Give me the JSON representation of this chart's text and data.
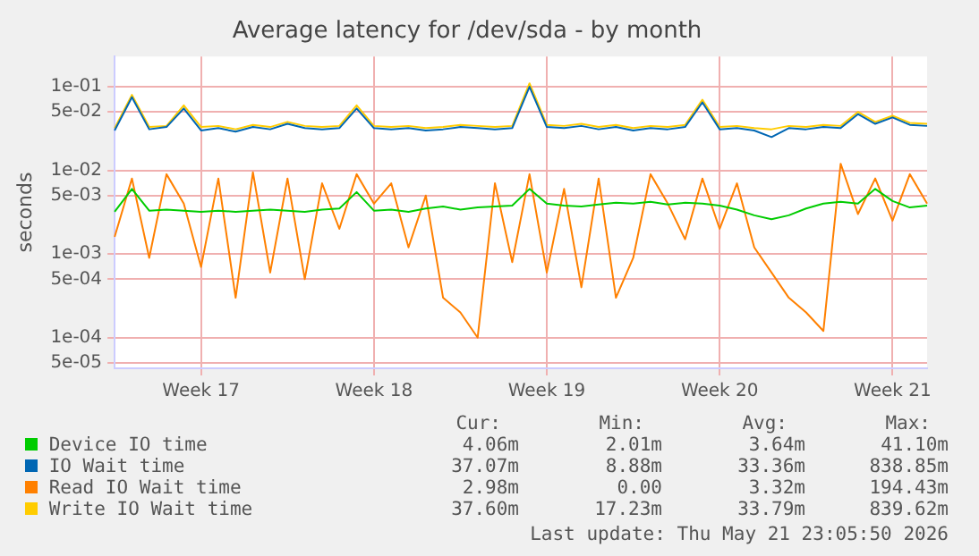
{
  "chart_data": {
    "type": "line",
    "title": "Average latency for /dev/sda - by month",
    "ylabel": "seconds",
    "categories": [
      null,
      null,
      null,
      null,
      null,
      "Week 17",
      null,
      null,
      null,
      null,
      null,
      null,
      null,
      null,
      null,
      "Week 18",
      null,
      null,
      null,
      null,
      null,
      null,
      null,
      null,
      null,
      "Week 19",
      null,
      null,
      null,
      null,
      null,
      null,
      null,
      null,
      null,
      "Week 20",
      null,
      null,
      null,
      null,
      null,
      null,
      null,
      null,
      null,
      "Week 21",
      null,
      null
    ],
    "series": [
      {
        "name": "Device IO time",
        "color": "#00cc00",
        "values": [
          0.0032,
          0.006,
          0.0033,
          0.0034,
          0.0033,
          0.0032,
          0.0033,
          0.0032,
          0.0033,
          0.0034,
          0.0033,
          0.0032,
          0.0034,
          0.0035,
          0.0055,
          0.0033,
          0.0034,
          0.0032,
          0.0035,
          0.0037,
          0.0034,
          0.0036,
          0.0037,
          0.0038,
          0.006,
          0.004,
          0.0038,
          0.0037,
          0.0039,
          0.0041,
          0.004,
          0.0042,
          0.0039,
          0.0041,
          0.004,
          0.0038,
          0.0034,
          0.0029,
          0.0026,
          0.0029,
          0.0035,
          0.004,
          0.0042,
          0.004,
          0.006,
          0.0043,
          0.0036,
          0.0038
        ]
      },
      {
        "name": "IO Wait time",
        "color": "#0066b3",
        "values": [
          0.03,
          0.075,
          0.031,
          0.033,
          0.055,
          0.03,
          0.032,
          0.029,
          0.033,
          0.031,
          0.036,
          0.032,
          0.031,
          0.032,
          0.055,
          0.032,
          0.031,
          0.032,
          0.03,
          0.031,
          0.033,
          0.032,
          0.031,
          0.032,
          0.1,
          0.033,
          0.032,
          0.034,
          0.031,
          0.033,
          0.03,
          0.032,
          0.031,
          0.033,
          0.065,
          0.031,
          0.032,
          0.03,
          0.025,
          0.032,
          0.031,
          0.033,
          0.032,
          0.047,
          0.036,
          0.043,
          0.035,
          0.034
        ]
      },
      {
        "name": "Read IO Wait time",
        "color": "#ff8000",
        "values": [
          0.0016,
          0.008,
          0.0009,
          0.009,
          0.004,
          0.0007,
          0.008,
          0.0003,
          0.0095,
          0.0006,
          0.008,
          0.0005,
          0.007,
          0.002,
          0.009,
          0.004,
          0.007,
          0.0012,
          0.005,
          0.0003,
          0.0002,
          0.0001,
          0.007,
          0.0008,
          0.009,
          0.0006,
          0.006,
          0.0004,
          0.008,
          0.0003,
          0.0009,
          0.009,
          0.004,
          0.0015,
          0.008,
          0.002,
          0.007,
          0.0012,
          0.0006,
          0.0003,
          0.0002,
          0.00012,
          0.012,
          0.003,
          0.008,
          0.0025,
          0.009,
          0.004
        ]
      },
      {
        "name": "Write IO Wait time",
        "color": "#ffcc00",
        "values": [
          0.032,
          0.08,
          0.033,
          0.034,
          0.06,
          0.033,
          0.034,
          0.031,
          0.035,
          0.033,
          0.038,
          0.034,
          0.033,
          0.034,
          0.06,
          0.034,
          0.033,
          0.034,
          0.032,
          0.033,
          0.035,
          0.034,
          0.033,
          0.034,
          0.11,
          0.035,
          0.034,
          0.036,
          0.033,
          0.035,
          0.032,
          0.034,
          0.033,
          0.035,
          0.07,
          0.033,
          0.034,
          0.032,
          0.031,
          0.034,
          0.033,
          0.035,
          0.034,
          0.05,
          0.038,
          0.045,
          0.037,
          0.036
        ]
      }
    ],
    "ylim": [
      4.3e-05,
      0.23
    ],
    "yticks": [
      {
        "value": 0.1,
        "label": "1e-01"
      },
      {
        "value": 0.05,
        "label": "5e-02"
      },
      {
        "value": 0.01,
        "label": "1e-02"
      },
      {
        "value": 0.005,
        "label": "5e-03"
      },
      {
        "value": 0.001,
        "label": "1e-03"
      },
      {
        "value": 0.0005,
        "label": "5e-04"
      },
      {
        "value": 0.0001,
        "label": "1e-04"
      },
      {
        "value": 5e-05,
        "label": "5e-05"
      }
    ],
    "log": "y",
    "grid": true,
    "legend": "bottom left",
    "marker": "none",
    "line_style": "solid",
    "annotations": [
      "Cur:",
      "Min:",
      "Avg:",
      "Max:",
      "4.06m",
      "2.01m",
      "3.64m",
      "41.10m",
      "37.07m",
      "8.88m",
      "33.36m",
      "838.85m",
      "2.98m",
      "0.00",
      "3.32m",
      "194.43m",
      "37.60m",
      "17.23m",
      "33.79m",
      "839.62m",
      "Last update: Thu May 21 23:05:50 2026"
    ]
  }
}
